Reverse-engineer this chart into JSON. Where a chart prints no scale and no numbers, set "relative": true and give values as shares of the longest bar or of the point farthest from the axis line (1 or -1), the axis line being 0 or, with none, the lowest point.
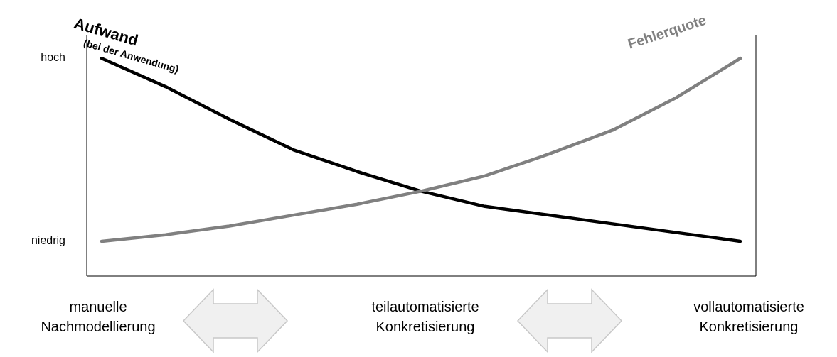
{
  "chart_data": {
    "type": "line",
    "relative": true,
    "categories": [
      null,
      null,
      null,
      null,
      null,
      null,
      null,
      null,
      null,
      null,
      null
    ],
    "series": [
      {
        "name": "Aufwand",
        "color": "#000000",
        "values": [
          1.0,
          0.87,
          0.72,
          0.58,
          0.48,
          0.39,
          0.32,
          0.28,
          0.24,
          0.2,
          0.16
        ]
      },
      {
        "name": "Fehlerquote",
        "color": "#808080",
        "values": [
          0.16,
          0.19,
          0.23,
          0.28,
          0.33,
          0.39,
          0.46,
          0.56,
          0.67,
          0.82,
          1.0
        ]
      }
    ],
    "grid": false,
    "legend": false,
    "marker": "none",
    "line_style": "solid",
    "annotations": [
      "(bei der Anwendung)",
      "hoch",
      "niedrig",
      "manuelle Nachmodellierung",
      "teilautomatisierte Konkretisierung",
      "vollautomatisierte Konkretisierung"
    ]
  }
}
